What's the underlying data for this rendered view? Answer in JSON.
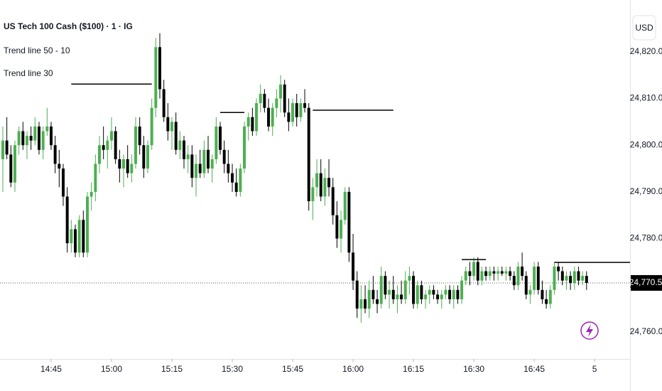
{
  "chart_data": {
    "type": "candlestick",
    "title": "US Tech 100 Cash ($100) · 1 · IG",
    "indicators": [
      "Trend line 50 - 10",
      "Trend line 30"
    ],
    "currency": "USD",
    "up_color": "#4caf50",
    "down_color": "#000000",
    "xlim": [
      872.3,
      1028.8
    ],
    "ylim": [
      24754.2,
      24831.1
    ],
    "xticks": [
      {
        "value": 885,
        "label": "14:45"
      },
      {
        "value": 900,
        "label": "15:00"
      },
      {
        "value": 915,
        "label": "15:15"
      },
      {
        "value": 930,
        "label": "15:30"
      },
      {
        "value": 945,
        "label": "15:45"
      },
      {
        "value": 960,
        "label": "16:00"
      },
      {
        "value": 975,
        "label": "16:15"
      },
      {
        "value": 990,
        "label": "16:30"
      },
      {
        "value": 1005,
        "label": "16:45"
      },
      {
        "value": 1020,
        "label": "5"
      }
    ],
    "yticks": [
      {
        "value": 24760,
        "label": "24,760.0"
      },
      {
        "value": 24770,
        "label": "24,770.0"
      },
      {
        "value": 24780,
        "label": "24,780.0"
      },
      {
        "value": 24790,
        "label": "24,790.0"
      },
      {
        "value": 24800,
        "label": "24,800.0"
      },
      {
        "value": 24810,
        "label": "24,810.0"
      },
      {
        "value": 24820,
        "label": "24,820.0"
      }
    ],
    "last_price": {
      "value": 24770.5,
      "label": "24,770.5"
    },
    "trend_lines": [
      {
        "value": 24813.1,
        "x": [
          890,
          910
        ]
      },
      {
        "value": 24807,
        "x": [
          927,
          933
        ]
      },
      {
        "value": 24807.5,
        "x": [
          950,
          970
        ]
      },
      {
        "value": 24775.5,
        "x": [
          987,
          993
        ]
      },
      {
        "value": 24774.9,
        "x": [
          1010,
          1028.8
        ]
      }
    ],
    "x": [
      873,
      874,
      875,
      876,
      877,
      878,
      879,
      880,
      881,
      882,
      883,
      884,
      885,
      886,
      887,
      888,
      889,
      890,
      891,
      892,
      893,
      894,
      895,
      896,
      897,
      898,
      899,
      900,
      901,
      902,
      903,
      904,
      905,
      906,
      907,
      908,
      909,
      910,
      911,
      912,
      913,
      914,
      915,
      916,
      917,
      918,
      919,
      920,
      921,
      922,
      923,
      924,
      925,
      926,
      927,
      928,
      929,
      930,
      931,
      932,
      933,
      934,
      935,
      936,
      937,
      938,
      939,
      940,
      941,
      942,
      943,
      944,
      945,
      946,
      947,
      948,
      949,
      950,
      951,
      952,
      953,
      954,
      955,
      956,
      957,
      958,
      959,
      960,
      961,
      962,
      963,
      964,
      965,
      966,
      967,
      968,
      969,
      970,
      971,
      972,
      973,
      974,
      975,
      976,
      977,
      978,
      979,
      980,
      981,
      982,
      983,
      984,
      985,
      986,
      987,
      988,
      989,
      990,
      991,
      992,
      993,
      994,
      995,
      996,
      997,
      998,
      999,
      1000,
      1001,
      1002,
      1003,
      1004,
      1005,
      1006,
      1007,
      1008,
      1009,
      1010,
      1011,
      1012,
      1013,
      1014,
      1015,
      1016,
      1017,
      1018
    ],
    "ohlc": [
      [
        24797,
        24804,
        24790,
        24801
      ],
      [
        24801,
        24806,
        24797,
        24798
      ],
      [
        24798,
        24800,
        24791,
        24792
      ],
      [
        24792,
        24801,
        24790,
        24800
      ],
      [
        24800,
        24804,
        24798,
        24803
      ],
      [
        24803,
        24805,
        24799,
        24800
      ],
      [
        24800,
        24803,
        24797,
        24802
      ],
      [
        24802,
        24804,
        24799,
        24801
      ],
      [
        24801,
        24806,
        24800,
        24804
      ],
      [
        24804,
        24805,
        24798,
        24799
      ],
      [
        24799,
        24804,
        24797,
        24803
      ],
      [
        24803,
        24808,
        24802,
        24804
      ],
      [
        24804,
        24805,
        24799,
        24800
      ],
      [
        24800,
        24802,
        24794,
        24796
      ],
      [
        24796,
        24799,
        24791,
        24795
      ],
      [
        24795,
        24796,
        24787,
        24789
      ],
      [
        24789,
        24791,
        24777,
        24779
      ],
      [
        24779,
        24784,
        24777,
        24782
      ],
      [
        24782,
        24783,
        24776,
        24777
      ],
      [
        24777,
        24785,
        24776,
        24784
      ],
      [
        24784,
        24786,
        24776,
        24777
      ],
      [
        24777,
        24790,
        24776,
        24789
      ],
      [
        24789,
        24792,
        24786,
        24790
      ],
      [
        24790,
        24798,
        24788,
        24796
      ],
      [
        24796,
        24802,
        24794,
        24800
      ],
      [
        24800,
        24804,
        24797,
        24799
      ],
      [
        24799,
        24802,
        24795,
        24801
      ],
      [
        24801,
        24806,
        24799,
        24803
      ],
      [
        24803,
        24804,
        24796,
        24797
      ],
      [
        24797,
        24799,
        24792,
        24795
      ],
      [
        24795,
        24798,
        24791,
        24797
      ],
      [
        24797,
        24800,
        24793,
        24794
      ],
      [
        24794,
        24798,
        24792,
        24796
      ],
      [
        24796,
        24806,
        24795,
        24804
      ],
      [
        24804,
        24806,
        24798,
        24800
      ],
      [
        24800,
        24802,
        24793,
        24795
      ],
      [
        24795,
        24801,
        24794,
        24800
      ],
      [
        24800,
        24810,
        24799,
        24808
      ],
      [
        24808,
        24823,
        24806,
        24821
      ],
      [
        24821,
        24824,
        24810,
        24812
      ],
      [
        24812,
        24814,
        24805,
        24806
      ],
      [
        24806,
        24809,
        24801,
        24803
      ],
      [
        24803,
        24806,
        24799,
        24805
      ],
      [
        24805,
        24807,
        24798,
        24799
      ],
      [
        24799,
        24803,
        24797,
        24801
      ],
      [
        24801,
        24802,
        24795,
        24797
      ],
      [
        24797,
        24800,
        24794,
        24798
      ],
      [
        24798,
        24800,
        24791,
        24793
      ],
      [
        24793,
        24798,
        24789,
        24796
      ],
      [
        24796,
        24799,
        24793,
        24794
      ],
      [
        24794,
        24801,
        24793,
        24799
      ],
      [
        24799,
        24802,
        24794,
        24795
      ],
      [
        24795,
        24798,
        24792,
        24797
      ],
      [
        24797,
        24806,
        24796,
        24804
      ],
      [
        24804,
        24805,
        24798,
        24799
      ],
      [
        24799,
        24801,
        24794,
        24796
      ],
      [
        24796,
        24799,
        24792,
        24794
      ],
      [
        24794,
        24796,
        24790,
        24792
      ],
      [
        24792,
        24795,
        24789,
        24790
      ],
      [
        24790,
        24796,
        24789,
        24795
      ],
      [
        24795,
        24805,
        24794,
        24804
      ],
      [
        24804,
        24807,
        24801,
        24806
      ],
      [
        24806,
        24808,
        24802,
        24803
      ],
      [
        24803,
        24810,
        24802,
        24809
      ],
      [
        24809,
        24813,
        24807,
        24811
      ],
      [
        24811,
        24812,
        24807,
        24808
      ],
      [
        24808,
        24810,
        24803,
        24804
      ],
      [
        24804,
        24809,
        24802,
        24808
      ],
      [
        24808,
        24812,
        24806,
        24810
      ],
      [
        24810,
        24815,
        24807,
        24813
      ],
      [
        24813,
        24814,
        24806,
        24807
      ],
      [
        24807,
        24810,
        24803,
        24805
      ],
      [
        24805,
        24810,
        24804,
        24809
      ],
      [
        24809,
        24811,
        24804,
        24806
      ],
      [
        24806,
        24810,
        24805,
        24809
      ],
      [
        24809,
        24812,
        24807,
        24808
      ],
      [
        24808,
        24809,
        24786,
        24788
      ],
      [
        24788,
        24793,
        24784,
        24791
      ],
      [
        24791,
        24797,
        24789,
        24794
      ],
      [
        24794,
        24797,
        24788,
        24789
      ],
      [
        24789,
        24795,
        24787,
        24793
      ],
      [
        24793,
        24797,
        24789,
        24791
      ],
      [
        24791,
        24793,
        24783,
        24785
      ],
      [
        24785,
        24788,
        24778,
        24780
      ],
      [
        24780,
        24786,
        24777,
        24784
      ],
      [
        24784,
        24791,
        24783,
        24790
      ],
      [
        24790,
        24791,
        24775,
        24777
      ],
      [
        24777,
        24781,
        24769,
        24771
      ],
      [
        24771,
        24773,
        24763,
        24765
      ],
      [
        24765,
        24770,
        24762,
        24767
      ],
      [
        24767,
        24770,
        24764,
        24765
      ],
      [
        24765,
        24771,
        24763,
        24769
      ],
      [
        24769,
        24772,
        24766,
        24767
      ],
      [
        24767,
        24769,
        24764,
        24766
      ],
      [
        24766,
        24774,
        24765,
        24772
      ],
      [
        24772,
        24773,
        24767,
        24768
      ],
      [
        24768,
        24771,
        24765,
        24769
      ],
      [
        24769,
        24772,
        24766,
        24767
      ],
      [
        24767,
        24770,
        24764,
        24768
      ],
      [
        24768,
        24771,
        24766,
        24767
      ],
      [
        24767,
        24773,
        24766,
        24771
      ],
      [
        24771,
        24774,
        24768,
        24772
      ],
      [
        24772,
        24773,
        24765,
        24766
      ],
      [
        24766,
        24771,
        24765,
        24770
      ],
      [
        24770,
        24771,
        24766,
        24767
      ],
      [
        24767,
        24769,
        24765,
        24768
      ],
      [
        24768,
        24770,
        24766,
        24769
      ],
      [
        24769,
        24770,
        24767,
        24768
      ],
      [
        24768,
        24769,
        24766,
        24767
      ],
      [
        24767,
        24769,
        24765,
        24768
      ],
      [
        24768,
        24770,
        24767,
        24769
      ],
      [
        24769,
        24770,
        24766,
        24767
      ],
      [
        24767,
        24770,
        24765,
        24769
      ],
      [
        24769,
        24770,
        24766,
        24767
      ],
      [
        24767,
        24772,
        24766,
        24771
      ],
      [
        24771,
        24774,
        24770,
        24773
      ],
      [
        24773,
        24775,
        24770,
        24772
      ],
      [
        24772,
        24776,
        24771,
        24775
      ],
      [
        24775,
        24776,
        24770,
        24771
      ],
      [
        24771,
        24774,
        24770,
        24773
      ],
      [
        24773,
        24774,
        24771,
        24772
      ],
      [
        24772,
        24774,
        24771,
        24773
      ],
      [
        24773,
        24774,
        24771,
        24772.5
      ],
      [
        24772.5,
        24774,
        24771,
        24773
      ],
      [
        24773,
        24774,
        24772,
        24772.5
      ],
      [
        24772.5,
        24774,
        24771,
        24773
      ],
      [
        24773,
        24774,
        24771,
        24772
      ],
      [
        24772,
        24773,
        24769,
        24770
      ],
      [
        24770,
        24775,
        24769,
        24774
      ],
      [
        24774,
        24777,
        24771,
        24772
      ],
      [
        24772,
        24773,
        24767,
        24768
      ],
      [
        24768,
        24770,
        24766,
        24769
      ],
      [
        24769,
        24775,
        24768,
        24774
      ],
      [
        24774,
        24775,
        24768,
        24769
      ],
      [
        24769,
        24771,
        24766,
        24767
      ],
      [
        24767,
        24769,
        24765,
        24766
      ],
      [
        24766,
        24770,
        24765,
        24769
      ],
      [
        24769,
        24775,
        24768,
        24774
      ],
      [
        24774,
        24775,
        24771,
        24773
      ],
      [
        24773,
        24774,
        24770,
        24771
      ],
      [
        24771,
        24773,
        24769,
        24772
      ],
      [
        24772,
        24773,
        24769,
        24770.5
      ],
      [
        24770.5,
        24774,
        24769,
        24773
      ],
      [
        24773,
        24774,
        24770,
        24771
      ],
      [
        24771,
        24773,
        24770,
        24772
      ],
      [
        24772,
        24773,
        24769,
        24770.5
      ]
    ]
  }
}
